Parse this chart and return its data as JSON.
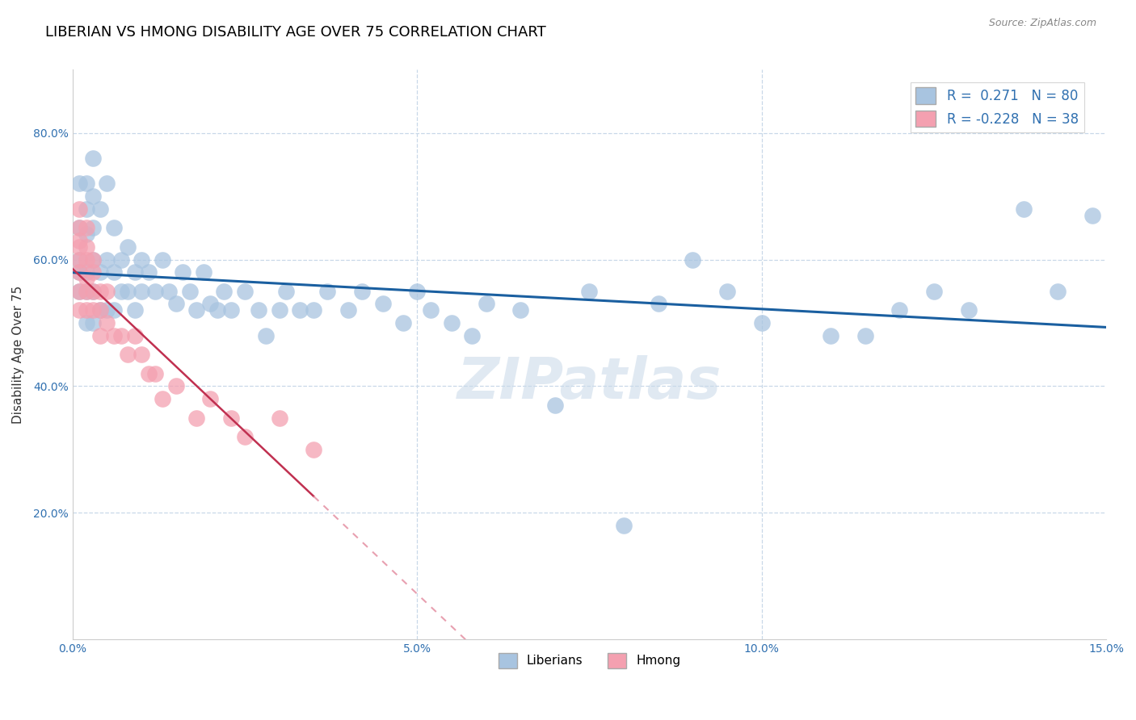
{
  "title": "LIBERIAN VS HMONG DISABILITY AGE OVER 75 CORRELATION CHART",
  "source": "Source: ZipAtlas.com",
  "ylabel": "Disability Age Over 75",
  "xlim": [
    0.0,
    0.15
  ],
  "ylim": [
    0.0,
    0.9
  ],
  "x_ticks": [
    0.0,
    0.05,
    0.1,
    0.15
  ],
  "x_tick_labels": [
    "0.0%",
    "5.0%",
    "10.0%",
    "15.0%"
  ],
  "y_ticks": [
    0.2,
    0.4,
    0.6,
    0.8
  ],
  "y_tick_labels": [
    "20.0%",
    "40.0%",
    "60.0%",
    "80.0%"
  ],
  "liberian_R": 0.271,
  "liberian_N": 80,
  "hmong_R": -0.228,
  "hmong_N": 38,
  "liberian_color": "#a8c4e0",
  "hmong_color": "#f4a0b0",
  "liberian_line_color": "#1a5fa0",
  "hmong_line_color_solid": "#c03050",
  "hmong_line_color_dash": "#e8a0b0",
  "watermark": "ZIPatlas",
  "grid_color": "#c8d8e8",
  "background_color": "#ffffff",
  "liberian_x": [
    0.001,
    0.001,
    0.001,
    0.001,
    0.001,
    0.002,
    0.002,
    0.002,
    0.002,
    0.002,
    0.002,
    0.003,
    0.003,
    0.003,
    0.003,
    0.003,
    0.003,
    0.004,
    0.004,
    0.004,
    0.005,
    0.005,
    0.005,
    0.006,
    0.006,
    0.006,
    0.007,
    0.007,
    0.008,
    0.008,
    0.009,
    0.009,
    0.01,
    0.01,
    0.011,
    0.012,
    0.013,
    0.014,
    0.015,
    0.016,
    0.017,
    0.018,
    0.019,
    0.02,
    0.021,
    0.022,
    0.023,
    0.025,
    0.027,
    0.028,
    0.03,
    0.031,
    0.033,
    0.035,
    0.037,
    0.04,
    0.042,
    0.045,
    0.048,
    0.05,
    0.052,
    0.055,
    0.058,
    0.06,
    0.065,
    0.07,
    0.075,
    0.08,
    0.085,
    0.09,
    0.095,
    0.1,
    0.11,
    0.115,
    0.12,
    0.125,
    0.13,
    0.138,
    0.143,
    0.148
  ],
  "liberian_y": [
    0.58,
    0.72,
    0.65,
    0.6,
    0.55,
    0.72,
    0.68,
    0.64,
    0.58,
    0.55,
    0.5,
    0.76,
    0.7,
    0.65,
    0.6,
    0.55,
    0.5,
    0.68,
    0.58,
    0.52,
    0.72,
    0.6,
    0.52,
    0.65,
    0.58,
    0.52,
    0.6,
    0.55,
    0.62,
    0.55,
    0.58,
    0.52,
    0.6,
    0.55,
    0.58,
    0.55,
    0.6,
    0.55,
    0.53,
    0.58,
    0.55,
    0.52,
    0.58,
    0.53,
    0.52,
    0.55,
    0.52,
    0.55,
    0.52,
    0.48,
    0.52,
    0.55,
    0.52,
    0.52,
    0.55,
    0.52,
    0.55,
    0.53,
    0.5,
    0.55,
    0.52,
    0.5,
    0.48,
    0.53,
    0.52,
    0.37,
    0.55,
    0.18,
    0.53,
    0.6,
    0.55,
    0.5,
    0.48,
    0.48,
    0.52,
    0.55,
    0.52,
    0.68,
    0.55,
    0.67
  ],
  "hmong_x": [
    0.001,
    0.001,
    0.001,
    0.001,
    0.001,
    0.001,
    0.001,
    0.001,
    0.002,
    0.002,
    0.002,
    0.002,
    0.002,
    0.002,
    0.003,
    0.003,
    0.003,
    0.003,
    0.004,
    0.004,
    0.004,
    0.005,
    0.005,
    0.006,
    0.007,
    0.008,
    0.009,
    0.01,
    0.011,
    0.012,
    0.013,
    0.015,
    0.018,
    0.02,
    0.023,
    0.025,
    0.03,
    0.035
  ],
  "hmong_y": [
    0.62,
    0.6,
    0.65,
    0.68,
    0.55,
    0.58,
    0.52,
    0.63,
    0.65,
    0.62,
    0.6,
    0.57,
    0.55,
    0.52,
    0.6,
    0.58,
    0.55,
    0.52,
    0.55,
    0.52,
    0.48,
    0.55,
    0.5,
    0.48,
    0.48,
    0.45,
    0.48,
    0.45,
    0.42,
    0.42,
    0.38,
    0.4,
    0.35,
    0.38,
    0.35,
    0.32,
    0.35,
    0.3
  ]
}
